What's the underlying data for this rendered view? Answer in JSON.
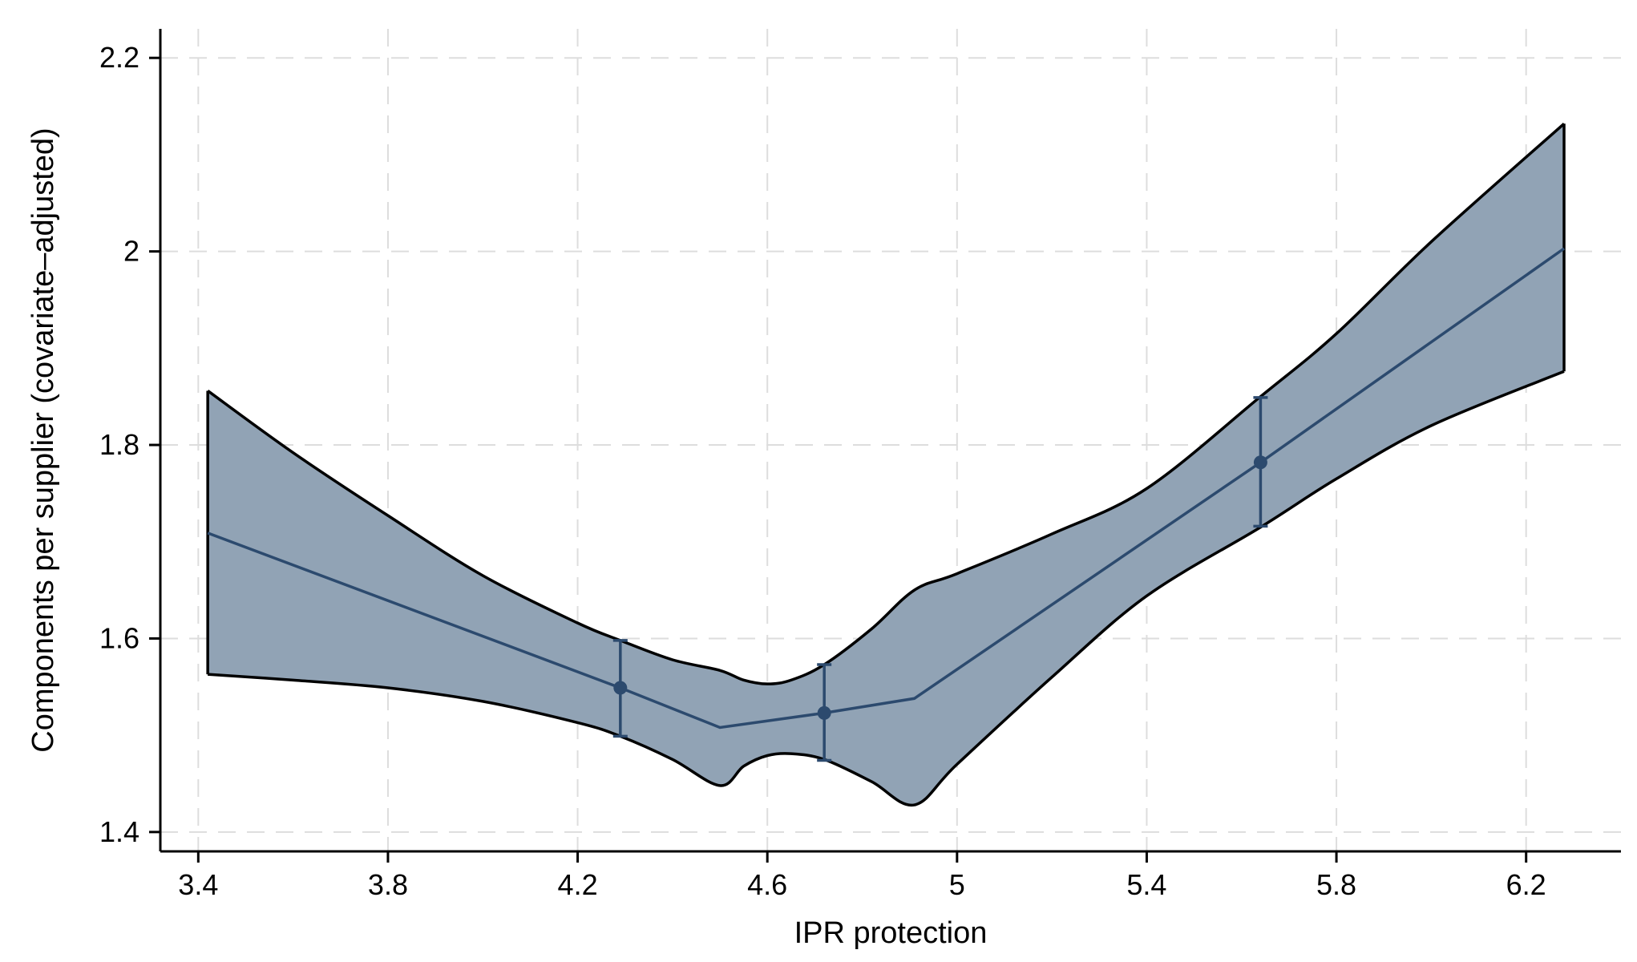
{
  "chart_data": {
    "type": "line",
    "title": "",
    "xlabel": "IPR protection",
    "ylabel": "Components per supplier (covariate–adjusted)",
    "xlim": [
      3.32,
      6.4
    ],
    "ylim": [
      1.38,
      2.23
    ],
    "x_ticks": [
      3.4,
      3.8,
      4.2,
      4.6,
      5.0,
      5.4,
      5.8,
      6.2
    ],
    "x_tick_labels": [
      "3.4",
      "3.8",
      "4.2",
      "4.6",
      "5",
      "5.4",
      "5.8",
      "6.2"
    ],
    "y_ticks": [
      1.4,
      1.6,
      1.8,
      2.0,
      2.2
    ],
    "y_tick_labels": [
      "1.4",
      "1.6",
      "1.8",
      "2",
      "2.2"
    ],
    "grid": true,
    "legend": "none",
    "colors": {
      "band_fill": "#91a3b5",
      "band_edge": "#000000",
      "line": "#2c4a6e",
      "grid": "#dddddd",
      "axis": "#000000"
    },
    "series": [
      {
        "x": [
          3.42,
          4.29,
          4.5,
          4.72,
          4.91,
          5.64,
          6.28
        ],
        "values": [
          1.709,
          1.549,
          1.508,
          1.523,
          1.538,
          1.782,
          2.003
        ]
      }
    ],
    "confidence_band": {
      "upper": [
        [
          3.42,
          1.856
        ],
        [
          3.6,
          1.792
        ],
        [
          3.8,
          1.727
        ],
        [
          4.0,
          1.665
        ],
        [
          4.2,
          1.616
        ],
        [
          4.29,
          1.598
        ],
        [
          4.4,
          1.578
        ],
        [
          4.5,
          1.567
        ],
        [
          4.55,
          1.557
        ],
        [
          4.6,
          1.553
        ],
        [
          4.65,
          1.557
        ],
        [
          4.72,
          1.573
        ],
        [
          4.82,
          1.61
        ],
        [
          4.91,
          1.65
        ],
        [
          5.0,
          1.667
        ],
        [
          5.2,
          1.708
        ],
        [
          5.4,
          1.755
        ],
        [
          5.64,
          1.85
        ],
        [
          5.8,
          1.915
        ],
        [
          6.0,
          2.01
        ],
        [
          6.28,
          2.132
        ]
      ],
      "lower": [
        [
          3.42,
          1.563
        ],
        [
          3.6,
          1.557
        ],
        [
          3.8,
          1.549
        ],
        [
          4.0,
          1.535
        ],
        [
          4.2,
          1.513
        ],
        [
          4.29,
          1.499
        ],
        [
          4.4,
          1.475
        ],
        [
          4.5,
          1.448
        ],
        [
          4.55,
          1.468
        ],
        [
          4.6,
          1.479
        ],
        [
          4.65,
          1.481
        ],
        [
          4.72,
          1.475
        ],
        [
          4.82,
          1.452
        ],
        [
          4.91,
          1.428
        ],
        [
          5.0,
          1.47
        ],
        [
          5.2,
          1.56
        ],
        [
          5.4,
          1.644
        ],
        [
          5.64,
          1.715
        ],
        [
          5.8,
          1.765
        ],
        [
          6.0,
          1.82
        ],
        [
          6.28,
          1.876
        ]
      ]
    },
    "error_bars": [
      {
        "x": 4.29,
        "y": 1.549,
        "low": 1.499,
        "high": 1.598
      },
      {
        "x": 4.72,
        "y": 1.523,
        "low": 1.474,
        "high": 1.573
      },
      {
        "x": 5.64,
        "y": 1.782,
        "low": 1.716,
        "high": 1.849
      }
    ]
  }
}
